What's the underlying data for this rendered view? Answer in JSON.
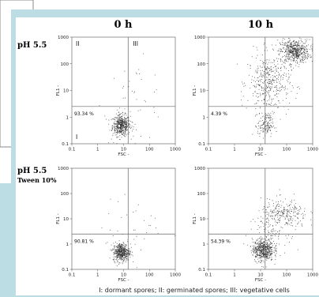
{
  "colors": {
    "frame": "#bcdde3",
    "panel": "#ffffff",
    "dots": "#222222",
    "gate": "#666666"
  },
  "chart_data": [
    {
      "type": "scatter",
      "panel": "row1-col1",
      "row_label": "pH 5.5",
      "row_sublabel": "",
      "column_label": "0 h",
      "xlabel": "FSC -",
      "ylabel": "FL1 -",
      "xscale": "log",
      "yscale": "log",
      "xlim": [
        0.1,
        1000
      ],
      "ylim": [
        0.1,
        1000
      ],
      "xticks": [
        "0.1",
        "1",
        "10",
        "100",
        "1000"
      ],
      "yticks": [
        "0.1",
        "1",
        "10",
        "100",
        "1000"
      ],
      "gate": {
        "x": 15,
        "y": 2.5
      },
      "quadrant_labels": [
        "II",
        "III",
        "I"
      ],
      "gated_percent": "93.34 %",
      "clusters": [
        {
          "center_x": 8,
          "center_y": 0.5,
          "spread_x_log": 0.17,
          "spread_y_log": 0.2,
          "count": 470
        },
        {
          "center_x": 25,
          "center_y": 4,
          "spread_x_log": 0.6,
          "spread_y_log": 0.75,
          "count": 50
        }
      ]
    },
    {
      "type": "scatter",
      "panel": "row1-col2",
      "row_label": "",
      "row_sublabel": "",
      "column_label": "10 h",
      "xlabel": "FSC -",
      "ylabel": "FL1 -",
      "xscale": "log",
      "yscale": "log",
      "xlim": [
        0.1,
        1000
      ],
      "ylim": [
        0.1,
        1000
      ],
      "xticks": [
        "0.1",
        "1",
        "10",
        "100",
        "1000"
      ],
      "yticks": [
        "0.1",
        "1",
        "10",
        "100",
        "1000"
      ],
      "gate": {
        "x": 15,
        "y": 2.5
      },
      "quadrant_labels": [],
      "gated_percent": "4.39 %",
      "clusters": [
        {
          "center_x": 200,
          "center_y": 300,
          "spread_x_log": 0.28,
          "spread_y_log": 0.22,
          "count": 560
        },
        {
          "center_x": 20,
          "center_y": 20,
          "spread_x_log": 0.4,
          "spread_y_log": 0.55,
          "count": 430
        },
        {
          "center_x": 15,
          "center_y": 0.5,
          "spread_x_log": 0.15,
          "spread_y_log": 0.22,
          "count": 140
        }
      ]
    },
    {
      "type": "scatter",
      "panel": "row2-col1",
      "row_label": "pH 5.5",
      "row_sublabel": "Tween 10%",
      "column_label": "",
      "xlabel": "FSC -",
      "ylabel": "FL1 -",
      "xscale": "log",
      "yscale": "log",
      "xlim": [
        0.1,
        1000
      ],
      "ylim": [
        0.1,
        1000
      ],
      "xticks": [
        "0.1",
        "1",
        "10",
        "100",
        "1000"
      ],
      "yticks": [
        "0.1",
        "1",
        "10",
        "100",
        "1000"
      ],
      "gate": {
        "x": 15,
        "y": 2.5
      },
      "quadrant_labels": [],
      "gated_percent": "90.81 %",
      "clusters": [
        {
          "center_x": 8,
          "center_y": 0.5,
          "spread_x_log": 0.16,
          "spread_y_log": 0.18,
          "count": 470
        },
        {
          "center_x": 25,
          "center_y": 4,
          "spread_x_log": 0.6,
          "spread_y_log": 0.6,
          "count": 35
        }
      ]
    },
    {
      "type": "scatter",
      "panel": "row2-col2",
      "row_label": "",
      "row_sublabel": "",
      "column_label": "",
      "xlabel": "FSC -",
      "ylabel": "FL1 -",
      "xscale": "log",
      "yscale": "log",
      "xlim": [
        0.1,
        1000
      ],
      "ylim": [
        0.1,
        1000
      ],
      "xticks": [
        "0.1",
        "1",
        "10",
        "100",
        "1000"
      ],
      "yticks": [
        "0.1",
        "1",
        "10",
        "100",
        "1000"
      ],
      "gate": {
        "x": 15,
        "y": 2.5
      },
      "quadrant_labels": [],
      "gated_percent": "54.39 %",
      "clusters": [
        {
          "center_x": 12,
          "center_y": 0.6,
          "spread_x_log": 0.2,
          "spread_y_log": 0.22,
          "count": 520
        },
        {
          "center_x": 80,
          "center_y": 15,
          "spread_x_log": 0.45,
          "spread_y_log": 0.3,
          "count": 260
        },
        {
          "center_x": 20,
          "center_y": 3,
          "spread_x_log": 0.35,
          "spread_y_log": 0.4,
          "count": 120
        }
      ]
    }
  ],
  "footnote": "I: dormant spores; II: germinated spores; III: vegetative cells"
}
